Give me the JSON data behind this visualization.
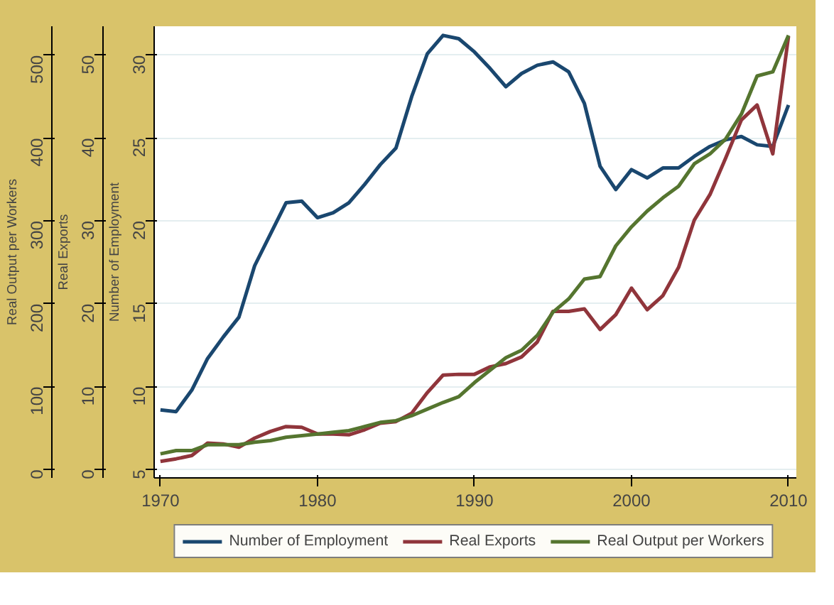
{
  "chart_data": {
    "type": "line",
    "x": [
      1970,
      1971,
      1972,
      1973,
      1974,
      1975,
      1976,
      1977,
      1978,
      1979,
      1980,
      1981,
      1982,
      1983,
      1984,
      1985,
      1986,
      1987,
      1988,
      1989,
      1990,
      1991,
      1992,
      1993,
      1994,
      1995,
      1996,
      1997,
      1998,
      1999,
      2000,
      2001,
      2002,
      2003,
      2004,
      2005,
      2006,
      2007,
      2008,
      2009,
      2010
    ],
    "series": [
      {
        "name": "Number of Employment",
        "color": "#1a476f",
        "axis": "y3",
        "values": [
          8.6,
          8.5,
          9.8,
          11.7,
          13.0,
          14.2,
          17.3,
          19.2,
          21.1,
          21.2,
          20.2,
          20.5,
          21.1,
          22.2,
          23.4,
          24.4,
          27.5,
          30.1,
          31.2,
          31.0,
          30.2,
          29.2,
          28.1,
          28.9,
          29.4,
          29.6,
          29.0,
          27.1,
          23.3,
          21.9,
          23.1,
          22.6,
          23.2,
          23.2,
          23.9,
          24.5,
          24.9,
          25.1,
          24.6,
          24.5,
          27.0
        ]
      },
      {
        "name": "Real Exports",
        "color": "#90353b",
        "axis": "y2",
        "values": [
          1.0,
          1.3,
          1.7,
          3.2,
          3.1,
          2.7,
          3.8,
          4.6,
          5.2,
          5.1,
          4.3,
          4.3,
          4.2,
          4.8,
          5.6,
          5.8,
          6.8,
          9.3,
          11.4,
          11.5,
          11.5,
          12.4,
          12.8,
          13.6,
          15.4,
          19.1,
          19.1,
          19.4,
          16.9,
          18.7,
          21.9,
          19.3,
          21.0,
          24.4,
          30.1,
          33.2,
          37.6,
          42.2,
          44.0,
          38.1,
          52.3
        ]
      },
      {
        "name": "Real Output per Workers",
        "color": "#55752f",
        "axis": "y",
        "values": [
          19,
          23,
          23,
          30,
          30,
          30,
          33,
          35,
          39,
          41,
          43,
          45,
          47,
          52,
          57,
          59,
          65,
          73,
          81,
          88,
          105,
          120,
          135,
          144,
          162,
          190,
          206,
          230,
          233,
          270,
          293,
          312,
          328,
          342,
          369,
          381,
          399,
          429,
          475,
          480,
          524
        ]
      }
    ],
    "ylabel": "Real Output per Workers",
    "y2label": "Real Exports",
    "y3label": "Number of Employment",
    "xlim": [
      1969.6,
      2010.5
    ],
    "xticks": [
      1970,
      1980,
      1990,
      2000,
      2010
    ],
    "ylim": [
      -10,
      535
    ],
    "yticks": [
      0,
      100,
      200,
      300,
      400,
      500
    ],
    "y2lim": [
      -1,
      53.5
    ],
    "y2ticks": [
      0,
      10,
      20,
      30,
      40,
      50
    ],
    "y3lim": [
      4.5,
      31.75
    ],
    "y3ticks": [
      5,
      10,
      15,
      20,
      25,
      30
    ],
    "grid": "y",
    "legend": "bottom",
    "line_style": "solid"
  }
}
